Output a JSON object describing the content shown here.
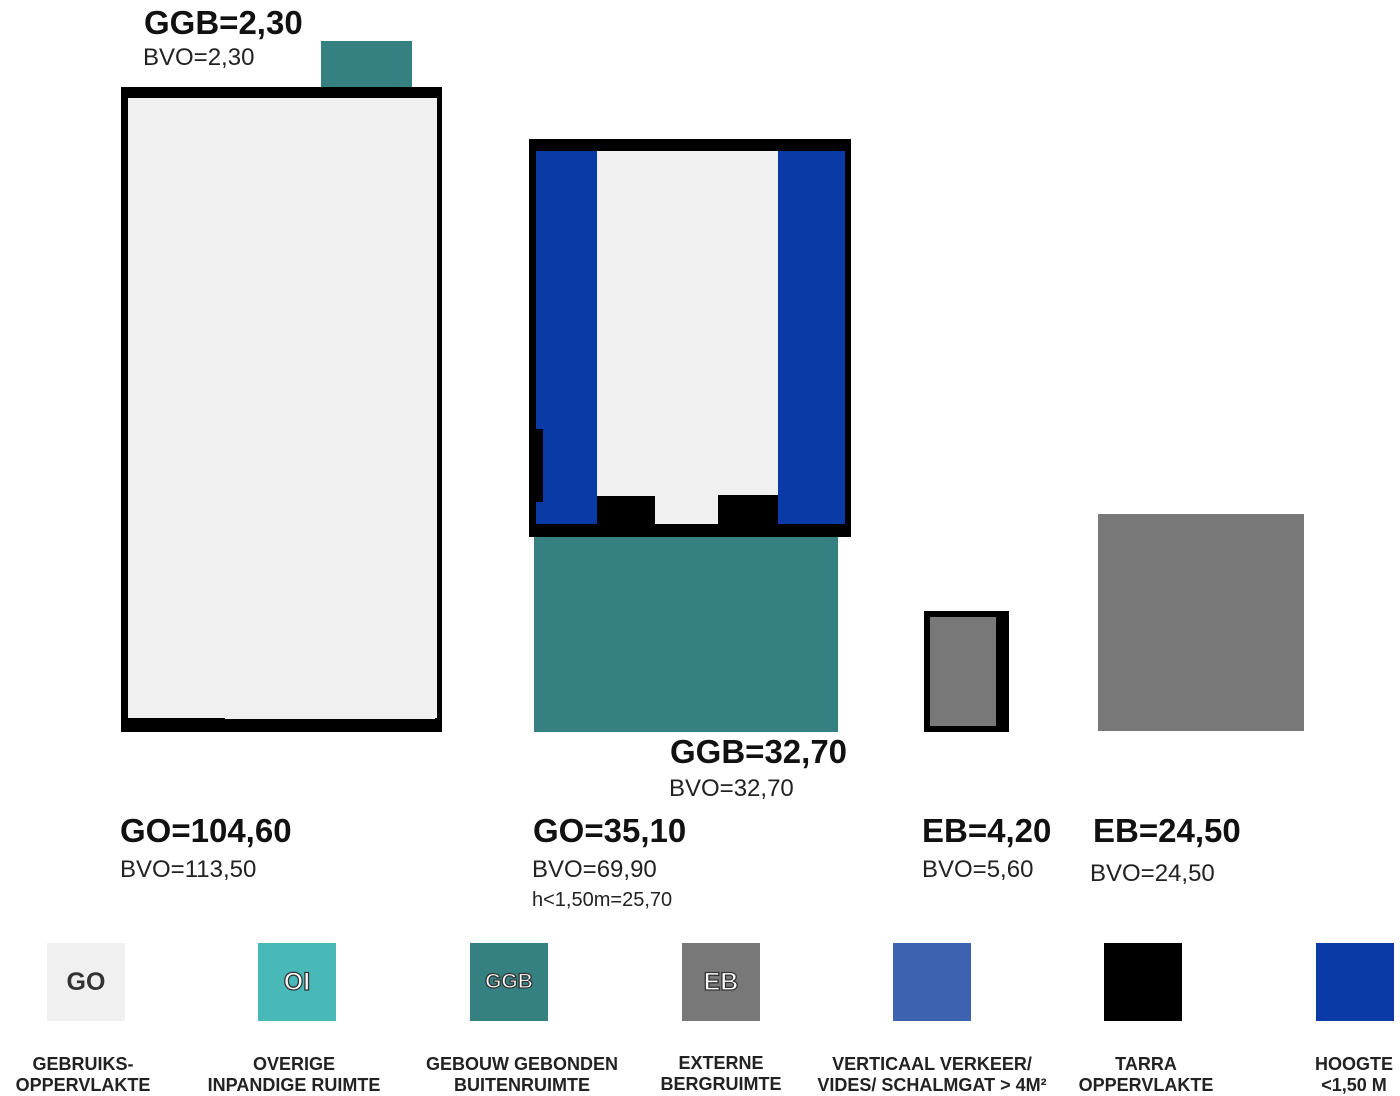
{
  "colors": {
    "go": "#f0f0f0",
    "oi": "#48b8b8",
    "ggb": "#358080",
    "eb": "#787878",
    "vv": "#3d63b0",
    "tarra": "#000000",
    "hoogte": "#0a3aa5"
  },
  "spaces": {
    "ggb_top": {
      "title": "GGB=2,30",
      "bvo": "BVO=2,30"
    },
    "go_left": {
      "title": "GO=104,60",
      "bvo": "BVO=113,50"
    },
    "ggb_mid": {
      "title": "GGB=32,70",
      "bvo": "BVO=32,70"
    },
    "go_mid": {
      "title": "GO=35,10",
      "bvo": "BVO=69,90",
      "note": "h<1,50m=25,70"
    },
    "eb_small": {
      "title": "EB=4,20",
      "bvo": "BVO=5,60"
    },
    "eb_big": {
      "title": "EB=24,50",
      "bvo": "BVO=24,50"
    }
  },
  "legend": [
    {
      "code": "GO",
      "label1": "GEBRUIKS-",
      "label2": "OPPERVLAKTE"
    },
    {
      "code": "OI",
      "label1": "OVERIGE",
      "label2": "INPANDIGE RUIMTE"
    },
    {
      "code": "GGB",
      "label1": "GEBOUW GEBONDEN",
      "label2": "BUITENRUIMTE"
    },
    {
      "code": "EB",
      "label1": "EXTERNE",
      "label2": "BERGRUIMTE"
    },
    {
      "code": "",
      "label1": "VERTICAAL VERKEER/",
      "label2": "VIDES/ SCHALMGAT > 4M²"
    },
    {
      "code": "",
      "label1": "TARRA",
      "label2": "OPPERVLAKTE"
    },
    {
      "code": "",
      "label1": "HOOGTE",
      "label2": "<1,50 M"
    }
  ]
}
